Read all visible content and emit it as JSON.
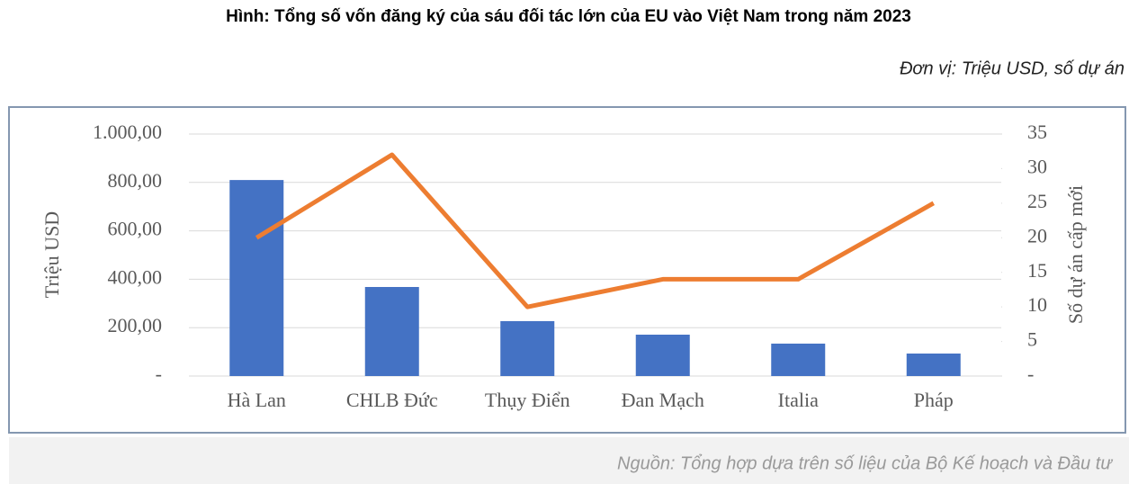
{
  "chart_data": {
    "type": "bar_line",
    "title": "Hình: Tổng số vốn đăng ký của sáu đối tác lớn của EU vào Việt Nam trong năm 2023",
    "subtitle": "Đơn vị: Triệu USD, số dự án",
    "source": "Nguồn: Tổng hợp dựa trên số liệu của Bộ Kế hoạch và Đầu tư",
    "ylabel": "Triệu USD",
    "y2label": "Số dự án cấp mới",
    "categories": [
      "Hà Lan",
      "CHLB Đức",
      "Thụy Điển",
      "Đan Mạch",
      "Italia",
      "Pháp"
    ],
    "series": [
      {
        "type": "bar",
        "color": "#4472c4",
        "values": [
          810,
          368,
          227,
          171,
          134,
          93
        ]
      },
      {
        "type": "line",
        "axis": "y2",
        "color": "#ed7d31",
        "values": [
          20,
          32,
          10,
          14,
          14,
          25
        ]
      }
    ],
    "ylim": [
      0,
      1000
    ],
    "yticks": [
      {
        "value": 0,
        "label": "-"
      },
      {
        "value": 200,
        "label": "200,00"
      },
      {
        "value": 400,
        "label": "400,00"
      },
      {
        "value": 600,
        "label": "600,00"
      },
      {
        "value": 800,
        "label": "800,00"
      },
      {
        "value": 1000,
        "label": "1.000,00"
      }
    ],
    "y2lim": [
      0,
      35
    ],
    "y2ticks": [
      {
        "value": 0,
        "label": "-"
      },
      5,
      10,
      15,
      20,
      25,
      30,
      35
    ],
    "grid": true
  }
}
